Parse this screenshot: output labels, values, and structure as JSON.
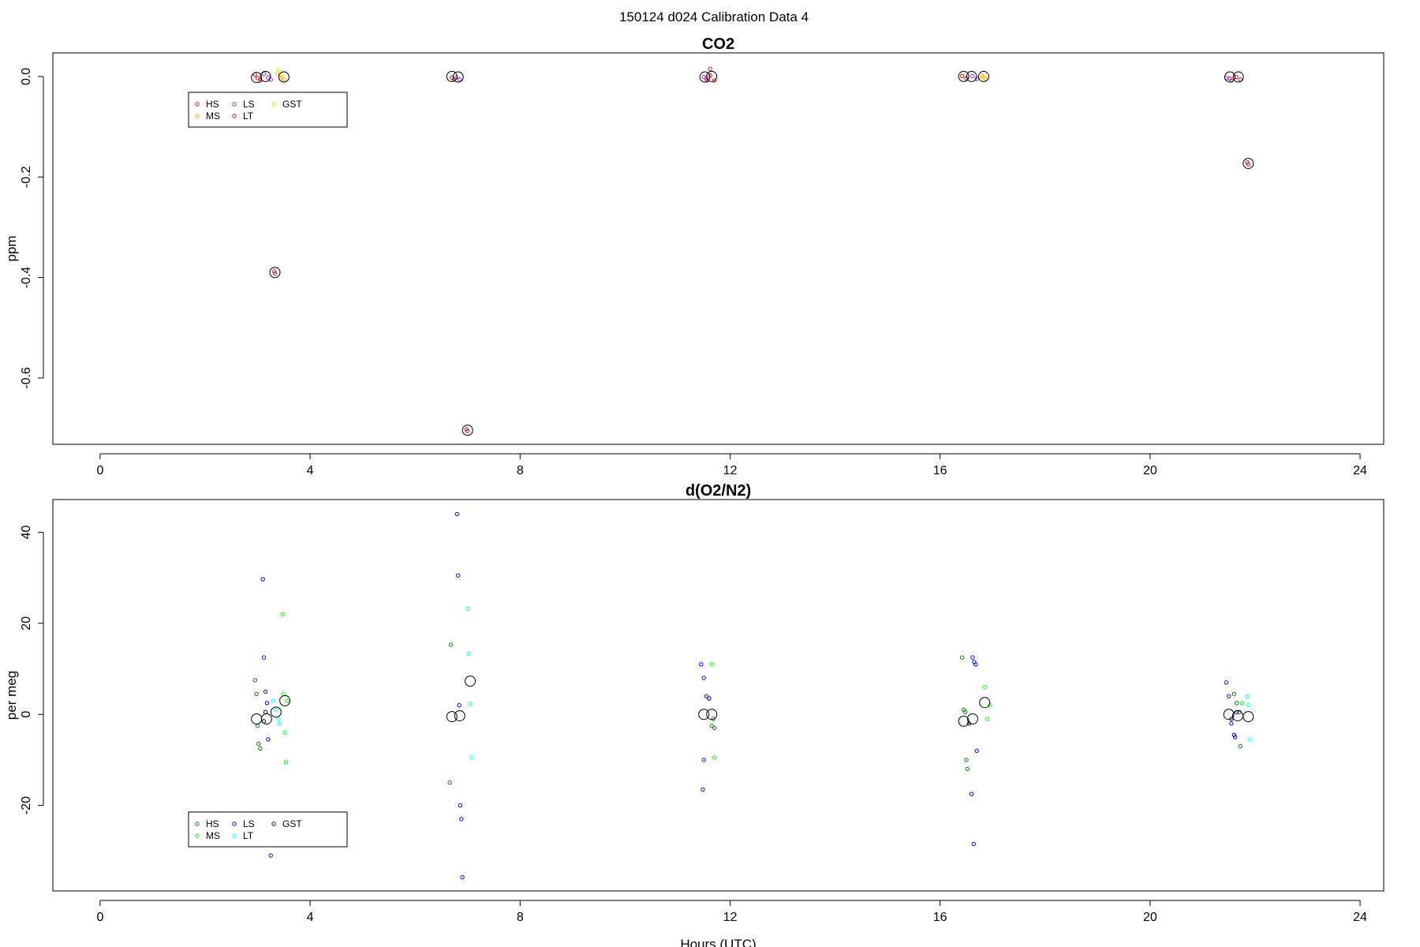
{
  "figure": {
    "title": "150124   d024   Calibration Data 4"
  },
  "chart_data": [
    {
      "type": "scatter",
      "title": "CO2",
      "ylabel": "ppm",
      "xlabel": "",
      "xlim": [
        -0.9,
        24.45
      ],
      "ylim": [
        -0.732,
        0.047
      ],
      "xticks": [
        0,
        4,
        8,
        12,
        16,
        20,
        24
      ],
      "xtick_labels": [
        "0",
        "4",
        "8",
        "12",
        "16",
        "20",
        "24"
      ],
      "yticks": [
        0.0,
        -0.2,
        -0.4,
        -0.6
      ],
      "ytick_labels": [
        "0.0",
        "-0.2",
        "-0.4",
        "-0.6"
      ],
      "grid": false,
      "legend": {
        "placement": "top-left",
        "ncol": 3
      },
      "series": [
        {
          "name": "HS",
          "color": "#ff0000",
          "x": [
            2.95,
            3.0,
            3.05,
            11.55,
            11.62,
            11.7,
            16.42,
            16.5,
            21.52,
            21.64,
            21.72
          ],
          "y": [
            0.004,
            -0.003,
            -0.008,
            -0.004,
            0.002,
            -0.008,
            0.001,
            -0.004,
            -0.004,
            -0.001,
            -0.006
          ]
        },
        {
          "name": "MS",
          "color": "#ffa500",
          "x": [
            3.38,
            3.46,
            3.5,
            16.8,
            16.86
          ],
          "y": [
            0.006,
            -0.002,
            -0.006,
            0.001,
            -0.004
          ]
        },
        {
          "name": "LS",
          "color": "#a020f0",
          "x": [
            3.12,
            3.2,
            3.25,
            6.78,
            6.85,
            11.5,
            11.56,
            16.62,
            16.7,
            21.45,
            21.55
          ],
          "y": [
            0.005,
            -0.002,
            -0.006,
            -0.002,
            -0.006,
            -0.001,
            -0.008,
            0.001,
            -0.005,
            -0.003,
            -0.008
          ]
        },
        {
          "name": "LT",
          "color": "#b22222",
          "x": [
            3.32,
            3.33,
            6.7,
            6.74,
            6.98,
            7.0,
            11.62,
            21.85,
            21.87
          ],
          "y": [
            -0.388,
            -0.392,
            -0.002,
            -0.006,
            -0.702,
            -0.706,
            0.015,
            -0.171,
            -0.175
          ]
        },
        {
          "name": "GST",
          "color": "#ffd700",
          "x": [
            3.4,
            3.45,
            16.82
          ],
          "y": [
            0.012,
            0.002,
            -0.002
          ]
        }
      ],
      "means": {
        "x": [
          2.98,
          3.15,
          3.33,
          3.5,
          6.7,
          6.82,
          7.0,
          11.52,
          11.65,
          16.45,
          16.6,
          16.83,
          21.52,
          21.68,
          21.87
        ],
        "y": [
          -0.002,
          0.0,
          -0.39,
          -0.001,
          0.0,
          -0.001,
          -0.704,
          -0.001,
          0.0,
          0.0,
          0.0,
          0.0,
          -0.001,
          -0.001,
          -0.173
        ]
      }
    },
    {
      "type": "scatter",
      "title": "d(O2/N2)",
      "ylabel": "per meg",
      "xlabel": "Hours (UTC)",
      "xlim": [
        -0.9,
        24.45
      ],
      "ylim": [
        -38.8,
        47.2
      ],
      "xticks": [
        0,
        4,
        8,
        12,
        16,
        20,
        24
      ],
      "xtick_labels": [
        "0",
        "4",
        "8",
        "12",
        "16",
        "20",
        "24"
      ],
      "yticks": [
        40,
        20,
        0,
        -20
      ],
      "ytick_labels": [
        "40",
        "20",
        "0",
        "-20"
      ],
      "grid": false,
      "legend": {
        "placement": "bottom-left",
        "ncol": 3
      },
      "series": [
        {
          "name": "HS",
          "color": "#008000",
          "x": [
            2.95,
            2.98,
            3.0,
            3.02,
            3.05,
            6.68,
            6.66,
            11.6,
            11.65,
            11.68,
            11.7,
            16.42,
            16.45,
            16.48,
            16.5,
            16.52,
            21.6,
            21.65,
            21.7,
            21.72
          ],
          "y": [
            7.5,
            4.5,
            -2.5,
            -6.5,
            -7.5,
            15.3,
            -15.0,
            3.5,
            -2.5,
            -1.0,
            -3.0,
            12.5,
            1.0,
            0.5,
            -10.0,
            -12.0,
            4.5,
            2.5,
            0.5,
            -7.0
          ]
        },
        {
          "name": "MS",
          "color": "#00ff00",
          "x": [
            3.48,
            3.5,
            3.52,
            3.54,
            3.56,
            11.65,
            11.7,
            16.85,
            16.9,
            16.95,
            21.75
          ],
          "y": [
            22.0,
            4.5,
            -4.0,
            -10.5,
            3.0,
            11.0,
            -9.5,
            6.0,
            -1.0,
            2.0,
            2.5
          ]
        },
        {
          "name": "LS",
          "color": "#0000ff",
          "x": [
            3.1,
            3.12,
            3.15,
            3.18,
            3.2,
            3.22,
            3.25,
            6.8,
            6.82,
            6.84,
            6.86,
            6.88,
            6.9,
            11.45,
            11.5,
            11.55,
            11.6,
            11.5,
            11.48,
            16.62,
            16.65,
            16.68,
            16.7,
            16.6,
            16.64,
            21.45,
            21.5,
            21.55,
            21.6,
            21.62,
            21.65
          ],
          "y": [
            29.7,
            12.5,
            5.0,
            2.5,
            -5.5,
            -22.0,
            -31.0,
            44.0,
            30.5,
            2.0,
            -20.0,
            -23.0,
            -35.8,
            11.0,
            8.0,
            4.0,
            3.5,
            -10.0,
            -16.5,
            12.5,
            11.5,
            11.0,
            -8.0,
            -17.5,
            -28.5,
            7.0,
            4.0,
            -2.0,
            -4.5,
            -5.0,
            0.5
          ]
        },
        {
          "name": "LT",
          "color": "#00ffff",
          "x": [
            3.3,
            3.35,
            3.4,
            3.42,
            7.0,
            7.02,
            7.05,
            7.08,
            21.85,
            21.88,
            21.9
          ],
          "y": [
            3.0,
            1.0,
            -1.0,
            -2.0,
            23.2,
            13.3,
            2.3,
            -9.5,
            4.0,
            2.0,
            -5.5
          ]
        },
        {
          "name": "GST",
          "color": "#00008b",
          "x": [
            3.12,
            3.15,
            3.2,
            16.55,
            21.55
          ],
          "y": [
            -1.5,
            0.5,
            -22.0,
            -2.0,
            -1.0
          ]
        }
      ],
      "means": {
        "x": [
          2.98,
          3.17,
          3.35,
          3.52,
          6.7,
          6.85,
          7.05,
          11.5,
          11.65,
          16.45,
          16.62,
          16.85,
          21.5,
          21.67,
          21.87
        ],
        "y": [
          -1.0,
          -1.0,
          0.5,
          3.0,
          -0.5,
          -0.3,
          7.3,
          0.0,
          0.0,
          -1.5,
          -1.0,
          2.6,
          0.0,
          -0.3,
          -0.5
        ]
      }
    }
  ]
}
